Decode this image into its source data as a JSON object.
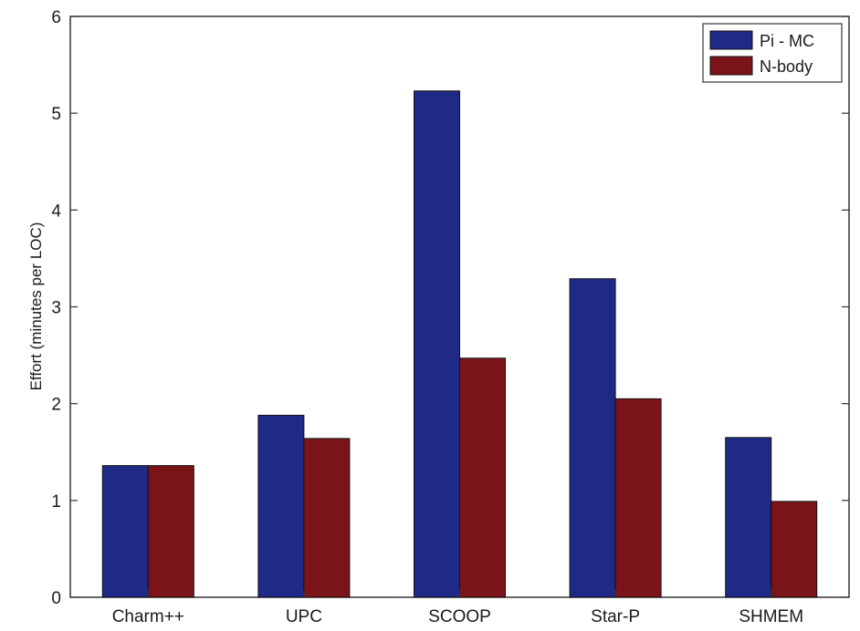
{
  "chart_data": {
    "type": "bar",
    "title": "",
    "xlabel": "",
    "ylabel": "Effort (minutes per LOC)",
    "categories": [
      "Charm++",
      "UPC",
      "SCOOP",
      "Star-P",
      "SHMEM"
    ],
    "series": [
      {
        "name": "Pi - MC",
        "color": "#1f2a86",
        "values": [
          1.36,
          1.88,
          5.23,
          3.29,
          1.65
        ]
      },
      {
        "name": "N-body",
        "color": "#7a1418",
        "values": [
          1.36,
          1.64,
          2.47,
          2.05,
          0.99
        ]
      }
    ],
    "ylim": [
      0,
      6
    ],
    "yticks": [
      0,
      1,
      2,
      3,
      4,
      5,
      6
    ],
    "grid": false,
    "legend_position": "top-right"
  }
}
